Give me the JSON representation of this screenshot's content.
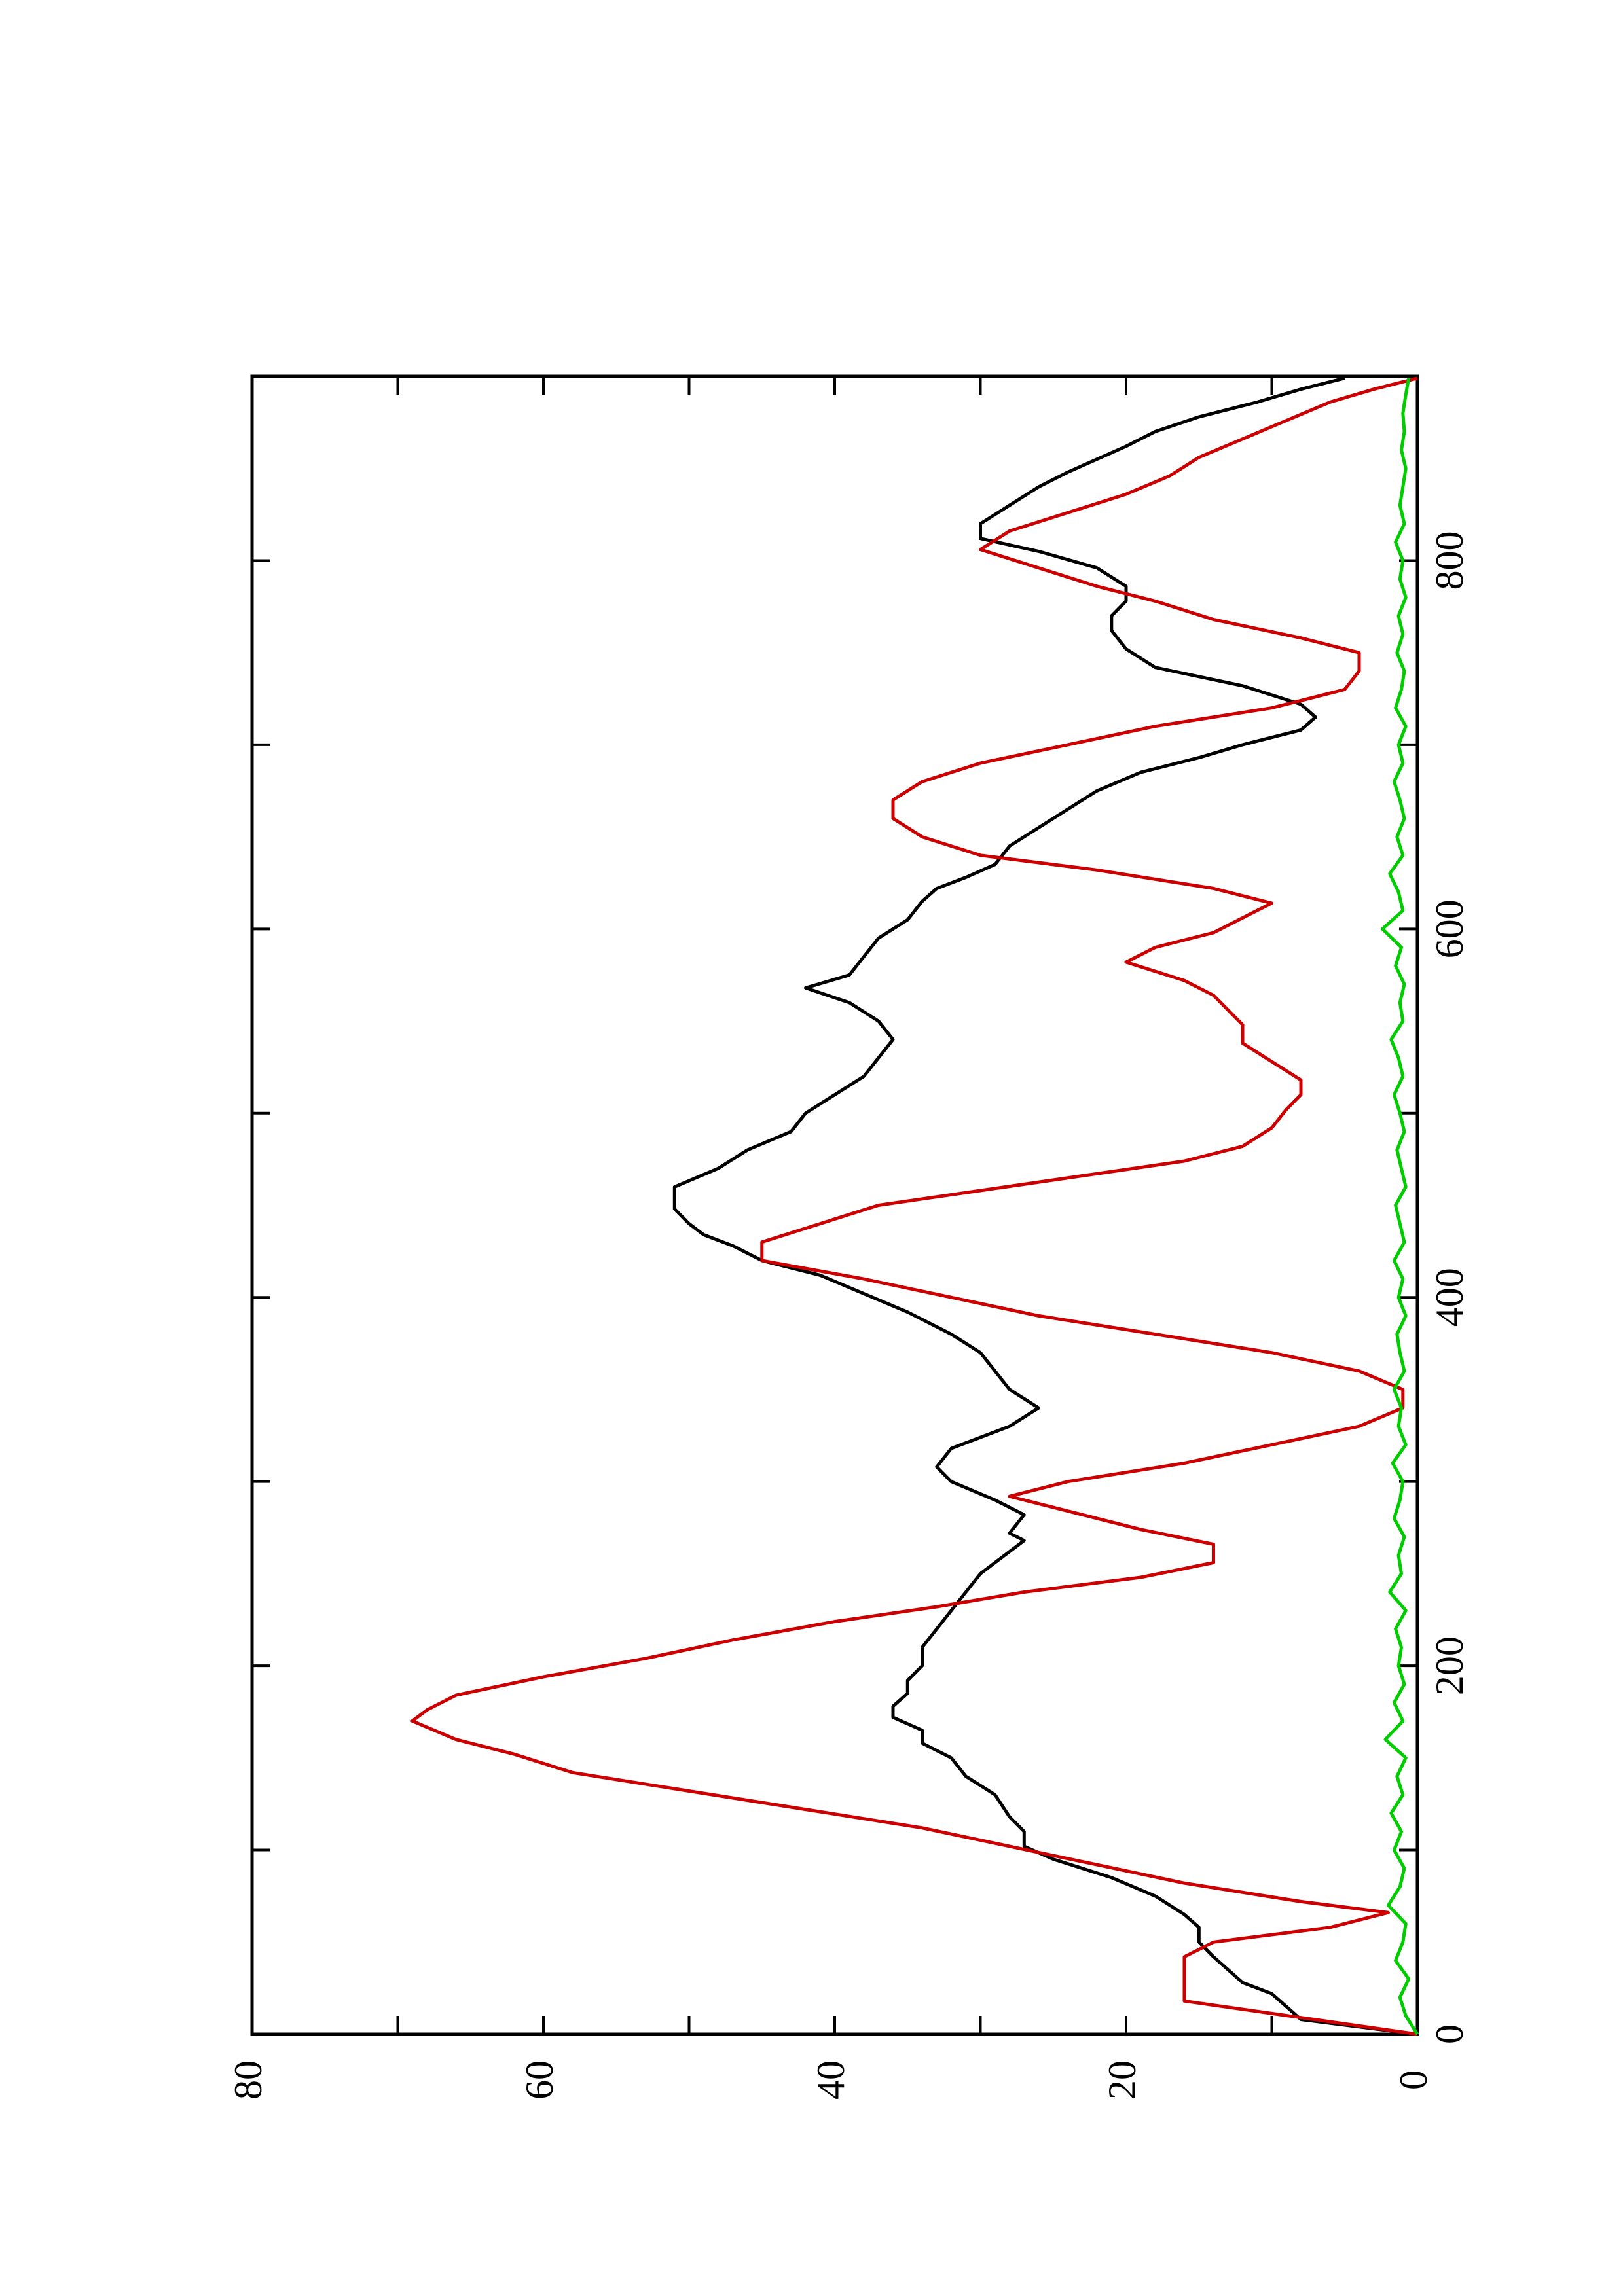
{
  "chart_data": {
    "type": "line",
    "orientation": "rotated-90-ccw",
    "title": "",
    "xlabel": "",
    "ylabel": "",
    "xlim": [
      0,
      900
    ],
    "ylim": [
      0,
      80
    ],
    "x_ticks": [
      0,
      200,
      400,
      600,
      800
    ],
    "y_ticks": [
      0,
      20,
      40,
      60,
      80
    ],
    "grid": false,
    "legend": "none",
    "series": [
      {
        "color": "#000000",
        "points": [
          [
            0,
            0
          ],
          [
            8,
            8
          ],
          [
            15,
            9
          ],
          [
            22,
            10
          ],
          [
            28,
            12
          ],
          [
            35,
            13
          ],
          [
            42,
            14
          ],
          [
            50,
            15
          ],
          [
            58,
            15
          ],
          [
            65,
            16
          ],
          [
            75,
            18
          ],
          [
            85,
            21
          ],
          [
            95,
            25
          ],
          [
            102,
            27
          ],
          [
            110,
            27
          ],
          [
            118,
            28
          ],
          [
            130,
            29
          ],
          [
            140,
            31
          ],
          [
            150,
            32
          ],
          [
            158,
            34
          ],
          [
            165,
            34
          ],
          [
            172,
            36
          ],
          [
            178,
            36
          ],
          [
            185,
            35
          ],
          [
            192,
            35
          ],
          [
            200,
            34
          ],
          [
            210,
            34
          ],
          [
            220,
            33
          ],
          [
            230,
            32
          ],
          [
            240,
            31
          ],
          [
            250,
            30
          ],
          [
            262,
            28
          ],
          [
            268,
            27
          ],
          [
            272,
            28
          ],
          [
            282,
            27
          ],
          [
            290,
            29
          ],
          [
            300,
            32
          ],
          [
            308,
            33
          ],
          [
            318,
            32
          ],
          [
            330,
            28
          ],
          [
            340,
            26
          ],
          [
            350,
            28
          ],
          [
            360,
            29
          ],
          [
            370,
            30
          ],
          [
            380,
            32
          ],
          [
            392,
            35
          ],
          [
            402,
            38
          ],
          [
            412,
            41
          ],
          [
            420,
            45
          ],
          [
            428,
            47
          ],
          [
            434,
            49
          ],
          [
            440,
            50
          ],
          [
            448,
            51
          ],
          [
            460,
            51
          ],
          [
            470,
            48
          ],
          [
            480,
            46
          ],
          [
            490,
            43
          ],
          [
            500,
            42
          ],
          [
            510,
            40
          ],
          [
            520,
            38
          ],
          [
            530,
            37
          ],
          [
            540,
            36
          ],
          [
            550,
            37
          ],
          [
            560,
            39
          ],
          [
            568,
            42
          ],
          [
            575,
            39
          ],
          [
            585,
            38
          ],
          [
            595,
            37
          ],
          [
            605,
            35
          ],
          [
            615,
            34
          ],
          [
            622,
            33
          ],
          [
            628,
            31
          ],
          [
            635,
            29
          ],
          [
            645,
            28
          ],
          [
            655,
            26
          ],
          [
            665,
            24
          ],
          [
            675,
            22
          ],
          [
            685,
            19
          ],
          [
            693,
            15
          ],
          [
            700,
            12
          ],
          [
            708,
            8
          ],
          [
            715,
            7
          ],
          [
            722,
            8
          ],
          [
            732,
            12
          ],
          [
            742,
            18
          ],
          [
            752,
            20
          ],
          [
            762,
            21
          ],
          [
            770,
            21
          ],
          [
            778,
            20
          ],
          [
            786,
            20
          ],
          [
            796,
            22
          ],
          [
            805,
            26
          ],
          [
            812,
            30
          ],
          [
            820,
            30
          ],
          [
            830,
            28
          ],
          [
            840,
            26
          ],
          [
            848,
            24
          ],
          [
            855,
            22
          ],
          [
            862,
            20
          ],
          [
            870,
            18
          ],
          [
            878,
            15
          ],
          [
            886,
            11
          ],
          [
            893,
            8
          ],
          [
            899,
            5
          ]
        ]
      },
      {
        "color": "#cc0000",
        "points": [
          [
            0,
            0
          ],
          [
            18,
            16
          ],
          [
            42,
            16
          ],
          [
            50,
            14
          ],
          [
            58,
            6
          ],
          [
            66,
            2
          ],
          [
            72,
            8
          ],
          [
            82,
            16
          ],
          [
            92,
            22
          ],
          [
            102,
            28
          ],
          [
            112,
            34
          ],
          [
            122,
            42
          ],
          [
            132,
            50
          ],
          [
            142,
            58
          ],
          [
            152,
            62
          ],
          [
            160,
            66
          ],
          [
            170,
            69
          ],
          [
            176,
            68
          ],
          [
            184,
            66
          ],
          [
            194,
            60
          ],
          [
            204,
            53
          ],
          [
            214,
            47
          ],
          [
            224,
            40
          ],
          [
            232,
            33
          ],
          [
            240,
            27
          ],
          [
            248,
            19
          ],
          [
            256,
            14
          ],
          [
            266,
            14
          ],
          [
            274,
            19
          ],
          [
            284,
            24
          ],
          [
            292,
            28
          ],
          [
            300,
            24
          ],
          [
            310,
            16
          ],
          [
            320,
            10
          ],
          [
            330,
            4
          ],
          [
            340,
            1
          ],
          [
            350,
            1
          ],
          [
            360,
            4
          ],
          [
            370,
            10
          ],
          [
            380,
            18
          ],
          [
            390,
            26
          ],
          [
            400,
            32
          ],
          [
            410,
            38
          ],
          [
            420,
            45
          ],
          [
            430,
            45
          ],
          [
            440,
            41
          ],
          [
            450,
            37
          ],
          [
            458,
            30
          ],
          [
            466,
            23
          ],
          [
            474,
            16
          ],
          [
            482,
            12
          ],
          [
            492,
            10
          ],
          [
            502,
            9
          ],
          [
            510,
            8
          ],
          [
            518,
            8
          ],
          [
            528,
            10
          ],
          [
            538,
            12
          ],
          [
            548,
            12
          ],
          [
            556,
            13
          ],
          [
            564,
            14
          ],
          [
            572,
            16
          ],
          [
            582,
            20
          ],
          [
            590,
            18
          ],
          [
            598,
            14
          ],
          [
            606,
            12
          ],
          [
            614,
            10
          ],
          [
            622,
            14
          ],
          [
            632,
            22
          ],
          [
            640,
            30
          ],
          [
            650,
            34
          ],
          [
            660,
            36
          ],
          [
            670,
            36
          ],
          [
            680,
            34
          ],
          [
            690,
            30
          ],
          [
            700,
            24
          ],
          [
            710,
            18
          ],
          [
            720,
            10
          ],
          [
            730,
            5
          ],
          [
            740,
            4
          ],
          [
            750,
            4
          ],
          [
            758,
            8
          ],
          [
            768,
            14
          ],
          [
            778,
            18
          ],
          [
            786,
            22
          ],
          [
            796,
            26
          ],
          [
            806,
            30
          ],
          [
            816,
            28
          ],
          [
            826,
            24
          ],
          [
            836,
            20
          ],
          [
            846,
            17
          ],
          [
            856,
            15
          ],
          [
            866,
            12
          ],
          [
            876,
            9
          ],
          [
            886,
            6
          ],
          [
            893,
            3
          ],
          [
            899,
            0
          ]
        ]
      },
      {
        "color": "#00cc00",
        "points": [
          [
            0,
            0
          ],
          [
            10,
            0.8
          ],
          [
            20,
            1.2
          ],
          [
            30,
            0.6
          ],
          [
            40,
            1.5
          ],
          [
            50,
            1.0
          ],
          [
            60,
            0.8
          ],
          [
            70,
            2.0
          ],
          [
            80,
            1.2
          ],
          [
            90,
            0.9
          ],
          [
            100,
            1.6
          ],
          [
            110,
            1.1
          ],
          [
            120,
            1.8
          ],
          [
            130,
            1.0
          ],
          [
            140,
            1.4
          ],
          [
            150,
            0.8
          ],
          [
            160,
            2.2
          ],
          [
            170,
            1.0
          ],
          [
            180,
            1.6
          ],
          [
            190,
            0.9
          ],
          [
            200,
            1.3
          ],
          [
            210,
            1.1
          ],
          [
            220,
            1.5
          ],
          [
            230,
            0.8
          ],
          [
            240,
            1.9
          ],
          [
            250,
            1.1
          ],
          [
            260,
            1.3
          ],
          [
            270,
            0.9
          ],
          [
            280,
            1.6
          ],
          [
            290,
            1.2
          ],
          [
            300,
            1.0
          ],
          [
            310,
            1.7
          ],
          [
            320,
            0.8
          ],
          [
            330,
            1.3
          ],
          [
            340,
            1.1
          ],
          [
            350,
            1.6
          ],
          [
            360,
            0.9
          ],
          [
            370,
            1.2
          ],
          [
            380,
            1.4
          ],
          [
            390,
            0.8
          ],
          [
            400,
            1.3
          ],
          [
            410,
            1.0
          ],
          [
            420,
            1.6
          ],
          [
            430,
            0.9
          ],
          [
            440,
            1.2
          ],
          [
            450,
            1.5
          ],
          [
            460,
            0.8
          ],
          [
            470,
            1.1
          ],
          [
            480,
            1.4
          ],
          [
            490,
            0.9
          ],
          [
            500,
            1.2
          ],
          [
            510,
            1.6
          ],
          [
            520,
            1.0
          ],
          [
            530,
            1.3
          ],
          [
            540,
            1.8
          ],
          [
            550,
            1.0
          ],
          [
            560,
            1.2
          ],
          [
            570,
            0.9
          ],
          [
            580,
            1.5
          ],
          [
            590,
            1.1
          ],
          [
            600,
            2.4
          ],
          [
            610,
            1.0
          ],
          [
            620,
            1.3
          ],
          [
            630,
            1.9
          ],
          [
            640,
            1.0
          ],
          [
            650,
            1.4
          ],
          [
            660,
            0.9
          ],
          [
            670,
            1.2
          ],
          [
            680,
            1.6
          ],
          [
            690,
            1.0
          ],
          [
            700,
            1.3
          ],
          [
            710,
            0.8
          ],
          [
            720,
            1.5
          ],
          [
            730,
            1.1
          ],
          [
            740,
            0.9
          ],
          [
            750,
            1.4
          ],
          [
            760,
            1.0
          ],
          [
            770,
            1.3
          ],
          [
            780,
            0.8
          ],
          [
            790,
            1.2
          ],
          [
            800,
            1.0
          ],
          [
            810,
            1.5
          ],
          [
            820,
            0.9
          ],
          [
            830,
            1.2
          ],
          [
            840,
            1.0
          ],
          [
            850,
            0.8
          ],
          [
            860,
            1.1
          ],
          [
            870,
            0.9
          ],
          [
            880,
            1.0
          ],
          [
            890,
            0.8
          ],
          [
            899,
            0.6
          ]
        ]
      }
    ]
  }
}
